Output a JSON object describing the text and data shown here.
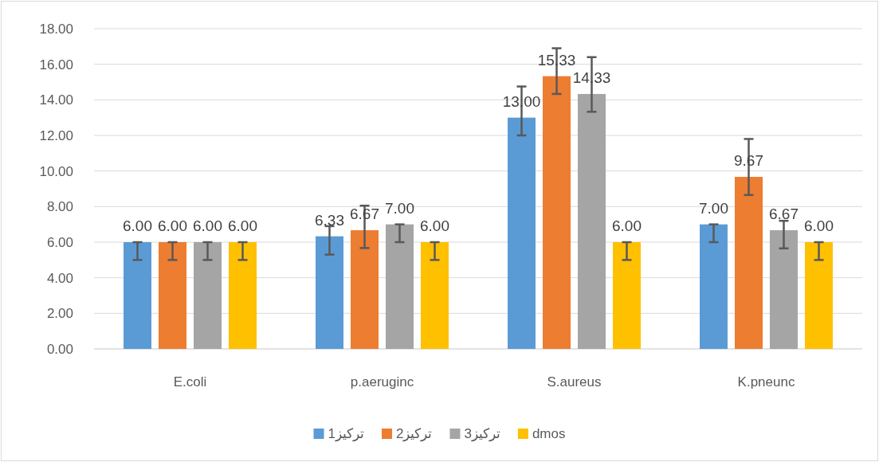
{
  "chart_data": {
    "type": "bar",
    "categories": [
      "E.coli",
      "p.aeruginc",
      "S.aureus",
      "K.pneunc"
    ],
    "series": [
      {
        "name": "تركيز1",
        "color": "#5b9bd5",
        "values": [
          6.0,
          6.33,
          13.0,
          7.0
        ],
        "value_labels": [
          "6.00",
          "6.33",
          "13.00",
          "7.00"
        ],
        "errors": [
          [
            5,
            6
          ],
          [
            5.3,
            6.9
          ],
          [
            12,
            14.75
          ],
          [
            6,
            7
          ]
        ]
      },
      {
        "name": "تركيز2",
        "color": "#ed7d31",
        "values": [
          6.0,
          6.67,
          15.33,
          9.67
        ],
        "value_labels": [
          "6.00",
          "6.67",
          "15.33",
          "9.67"
        ],
        "errors": [
          [
            5,
            6
          ],
          [
            5.67,
            8.05
          ],
          [
            14.33,
            16.9
          ],
          [
            8.65,
            11.8
          ]
        ]
      },
      {
        "name": "تركيز3",
        "color": "#a5a5a5",
        "values": [
          6.0,
          7.0,
          14.33,
          6.67
        ],
        "value_labels": [
          "6.00",
          "7.00",
          "14.33",
          "6.67"
        ],
        "errors": [
          [
            5,
            6
          ],
          [
            6,
            7
          ],
          [
            13.33,
            16.4
          ],
          [
            5.65,
            7.2
          ]
        ]
      },
      {
        "name": "dmos",
        "color": "#ffc000",
        "values": [
          6.0,
          6.0,
          6.0,
          6.0
        ],
        "value_labels": [
          "6.00",
          "6.00",
          "6.00",
          "6.00"
        ],
        "errors": [
          [
            5,
            6
          ],
          [
            5,
            6
          ],
          [
            5,
            6
          ],
          [
            5,
            6
          ]
        ]
      }
    ],
    "ylim": [
      0,
      18
    ],
    "yticks": [
      {
        "value": 0,
        "label": "0.00"
      },
      {
        "value": 2,
        "label": "2.00"
      },
      {
        "value": 4,
        "label": "4.00"
      },
      {
        "value": 6,
        "label": "6.00"
      },
      {
        "value": 8,
        "label": "8.00"
      },
      {
        "value": 10,
        "label": "10.00"
      },
      {
        "value": 12,
        "label": "12.00"
      },
      {
        "value": 14,
        "label": "14.00"
      },
      {
        "value": 16,
        "label": "16.00"
      },
      {
        "value": 18,
        "label": "18.00"
      }
    ],
    "grid": "y",
    "legend": "bottom"
  }
}
